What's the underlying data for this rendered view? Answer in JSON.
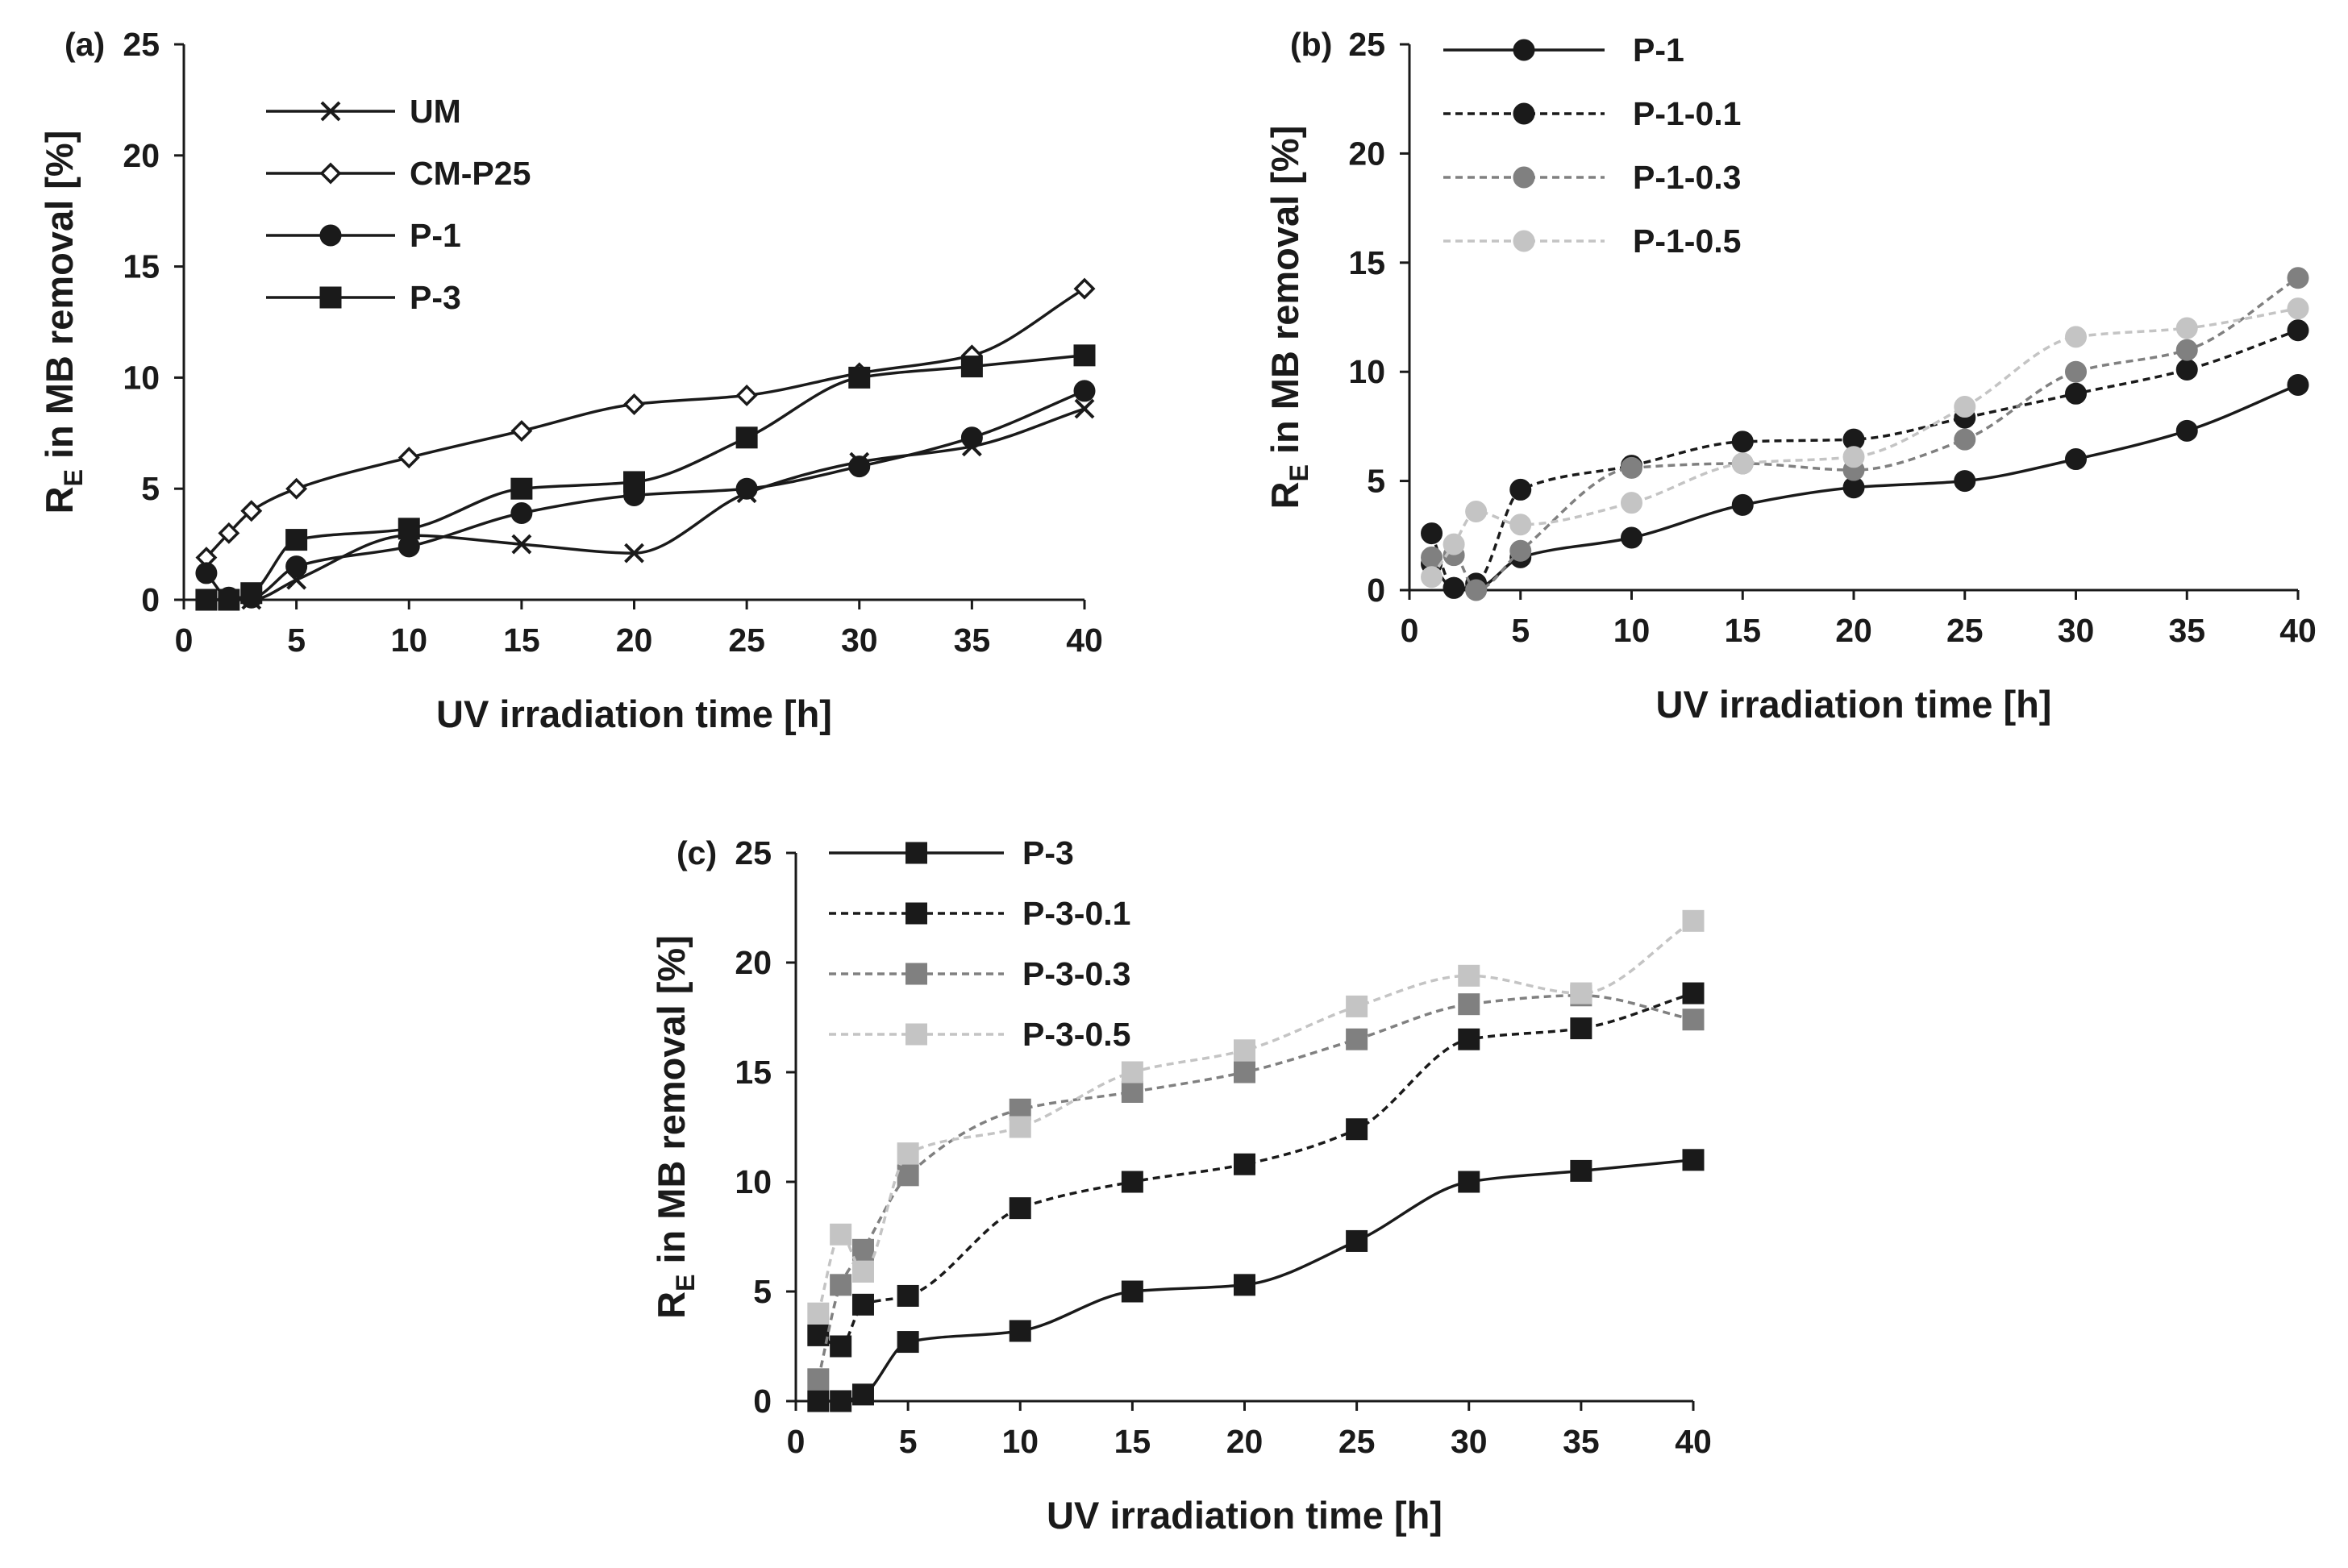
{
  "chart_data": [
    {
      "type": "line",
      "panel_label": "(a)",
      "xlabel": "UV irradiation time [h]",
      "ylabel_main": "R",
      "ylabel_sub": "E",
      "ylabel_rest": " in MB removal [%]",
      "xlim": [
        0,
        40
      ],
      "ylim": [
        0,
        25
      ],
      "xticks": [
        0,
        5,
        10,
        15,
        20,
        25,
        30,
        35,
        40
      ],
      "yticks": [
        0,
        5,
        10,
        15,
        20,
        25
      ],
      "legend_position": "top-left",
      "series": [
        {
          "name": "UM",
          "color": "#1a1a1a",
          "dash": "solid",
          "marker": "x",
          "x": [
            1,
            2,
            3,
            5,
            10,
            15,
            20,
            25,
            30,
            35,
            40
          ],
          "y": [
            0,
            0,
            0,
            0.9,
            2.9,
            2.5,
            2.1,
            4.8,
            6.2,
            6.9,
            8.6
          ]
        },
        {
          "name": "CM-P25",
          "color": "#1a1a1a",
          "dash": "solid",
          "marker": "diamond-open",
          "x": [
            1,
            2,
            3,
            5,
            10,
            15,
            20,
            25,
            30,
            35,
            40
          ],
          "y": [
            1.9,
            3.0,
            4.0,
            5.0,
            6.4,
            7.6,
            8.8,
            9.2,
            10.2,
            11.0,
            14.0
          ]
        },
        {
          "name": "P-1",
          "color": "#1a1a1a",
          "dash": "solid",
          "marker": "circle",
          "x": [
            1,
            2,
            3,
            5,
            10,
            15,
            20,
            25,
            30,
            35,
            40
          ],
          "y": [
            1.2,
            0.1,
            0.1,
            1.5,
            2.4,
            3.9,
            4.7,
            5.0,
            6.0,
            7.3,
            9.4
          ]
        },
        {
          "name": "P-3",
          "color": "#1a1a1a",
          "dash": "solid",
          "marker": "square",
          "x": [
            1,
            2,
            3,
            5,
            10,
            15,
            20,
            25,
            30,
            35,
            40
          ],
          "y": [
            0,
            0,
            0.3,
            2.7,
            3.2,
            5.0,
            5.3,
            7.3,
            10.0,
            10.5,
            11.0
          ]
        }
      ]
    },
    {
      "type": "line",
      "panel_label": "(b)",
      "xlabel": "UV irradiation time [h]",
      "ylabel_main": "R",
      "ylabel_sub": "E",
      "ylabel_rest": " in MB removal [%]",
      "xlim": [
        0,
        40
      ],
      "ylim": [
        0,
        25
      ],
      "xticks": [
        0,
        5,
        10,
        15,
        20,
        25,
        30,
        35,
        40
      ],
      "yticks": [
        0,
        5,
        10,
        15,
        20,
        25
      ],
      "legend_position": "top-left",
      "series": [
        {
          "name": "P-1",
          "color": "#1a1a1a",
          "dash": "solid",
          "marker": "circle",
          "x": [
            1,
            2,
            3,
            5,
            10,
            15,
            20,
            25,
            30,
            35,
            40
          ],
          "y": [
            1.2,
            0.1,
            0.1,
            1.5,
            2.4,
            3.9,
            4.7,
            5.0,
            6.0,
            7.3,
            9.4
          ]
        },
        {
          "name": "P-1-0.1",
          "color": "#1a1a1a",
          "dash": "dashed",
          "marker": "circle",
          "x": [
            1,
            2,
            3,
            5,
            10,
            15,
            20,
            25,
            30,
            35,
            40
          ],
          "y": [
            2.6,
            0.1,
            0.3,
            4.6,
            5.7,
            6.8,
            6.9,
            7.9,
            9.0,
            10.1,
            11.9
          ]
        },
        {
          "name": "P-1-0.3",
          "color": "#808080",
          "dash": "dashed",
          "marker": "circle",
          "x": [
            1,
            2,
            3,
            5,
            10,
            15,
            20,
            25,
            30,
            35,
            40
          ],
          "y": [
            1.5,
            1.6,
            0.0,
            1.8,
            5.6,
            5.8,
            5.5,
            6.9,
            10.0,
            11.0,
            14.3
          ]
        },
        {
          "name": "P-1-0.5",
          "color": "#c4c4c4",
          "dash": "dashed",
          "marker": "circle",
          "x": [
            1,
            2,
            3,
            5,
            10,
            15,
            20,
            25,
            30,
            35,
            40
          ],
          "y": [
            0.6,
            2.1,
            3.6,
            3.0,
            4.0,
            5.8,
            6.1,
            8.4,
            11.6,
            12.0,
            12.9
          ]
        }
      ]
    },
    {
      "type": "line",
      "panel_label": "(c)",
      "xlabel": "UV irradiation time [h]",
      "ylabel_main": "R",
      "ylabel_sub": "E",
      "ylabel_rest": " in MB removal [%]",
      "xlim": [
        0,
        40
      ],
      "ylim": [
        0,
        25
      ],
      "xticks": [
        0,
        5,
        10,
        15,
        20,
        25,
        30,
        35,
        40
      ],
      "yticks": [
        0,
        5,
        10,
        15,
        20,
        25
      ],
      "legend_position": "top-left",
      "series": [
        {
          "name": "P-3",
          "color": "#1a1a1a",
          "dash": "solid",
          "marker": "square",
          "x": [
            1,
            2,
            3,
            5,
            10,
            15,
            20,
            25,
            30,
            35,
            40
          ],
          "y": [
            0,
            0,
            0.3,
            2.7,
            3.2,
            5.0,
            5.3,
            7.3,
            10.0,
            10.5,
            11.0
          ]
        },
        {
          "name": "P-3-0.1",
          "color": "#1a1a1a",
          "dash": "dashed",
          "marker": "square",
          "x": [
            1,
            2,
            3,
            5,
            10,
            15,
            20,
            25,
            30,
            35,
            40
          ],
          "y": [
            3.0,
            2.5,
            4.4,
            4.8,
            8.8,
            10.0,
            10.8,
            12.4,
            16.5,
            17.0,
            18.6
          ]
        },
        {
          "name": "P-3-0.3",
          "color": "#808080",
          "dash": "dashed",
          "marker": "square",
          "x": [
            1,
            2,
            3,
            5,
            10,
            15,
            20,
            25,
            30,
            35,
            40
          ],
          "y": [
            1.0,
            5.3,
            6.9,
            10.3,
            13.3,
            14.1,
            15.0,
            16.5,
            18.1,
            18.5,
            17.4
          ]
        },
        {
          "name": "P-3-0.5",
          "color": "#c4c4c4",
          "dash": "dashed",
          "marker": "square",
          "x": [
            1,
            2,
            3,
            5,
            10,
            15,
            20,
            25,
            30,
            35,
            40
          ],
          "y": [
            4.0,
            7.6,
            5.9,
            11.3,
            12.5,
            15.0,
            16.0,
            18.0,
            19.4,
            18.6,
            21.9
          ]
        }
      ]
    }
  ]
}
